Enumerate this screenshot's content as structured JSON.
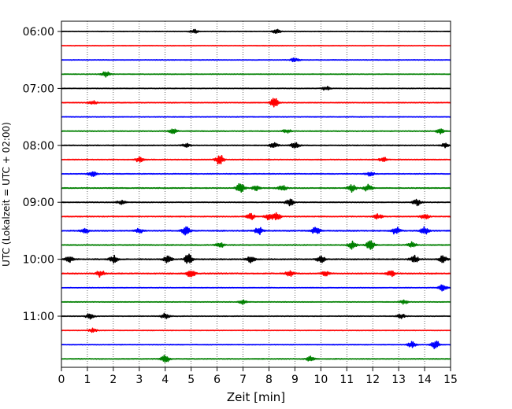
{
  "chart_data": {
    "type": "line",
    "title": "",
    "xlabel": "Zeit  [min]",
    "ylabel": "UTC (Lokalzeit = UTC + 02:00)",
    "xlim": [
      0,
      15
    ],
    "x_ticks": [
      "0",
      "1",
      "2",
      "3",
      "4",
      "5",
      "6",
      "7",
      "8",
      "9",
      "10",
      "11",
      "12",
      "13",
      "14",
      "15"
    ],
    "y_ticks": [
      "06:00",
      "07:00",
      "08:00",
      "09:00",
      "10:00",
      "11:00"
    ],
    "grid": "vertical dotted",
    "trace_interval_min": 15,
    "trace_colors": [
      "#000000",
      "#ff0000",
      "#0000ff",
      "#008000"
    ],
    "traces": [
      {
        "start": "06:00",
        "color": "#000000",
        "amplitude": 0.3,
        "bursts": [
          [
            5.1,
            1.0
          ],
          [
            8.3,
            1.0
          ]
        ]
      },
      {
        "start": "06:15",
        "color": "#ff0000",
        "amplitude": 0.3,
        "bursts": []
      },
      {
        "start": "06:30",
        "color": "#0000ff",
        "amplitude": 0.35,
        "bursts": [
          [
            9.0,
            1.0
          ]
        ]
      },
      {
        "start": "06:45",
        "color": "#008000",
        "amplitude": 0.35,
        "bursts": [
          [
            1.7,
            1.5
          ]
        ]
      },
      {
        "start": "07:00",
        "color": "#000000",
        "amplitude": 0.35,
        "bursts": [
          [
            10.2,
            1.0
          ]
        ]
      },
      {
        "start": "07:15",
        "color": "#ff0000",
        "amplitude": 0.4,
        "bursts": [
          [
            8.2,
            2.5
          ],
          [
            1.2,
            1.0
          ]
        ]
      },
      {
        "start": "07:30",
        "color": "#0000ff",
        "amplitude": 0.35,
        "bursts": []
      },
      {
        "start": "07:45",
        "color": "#008000",
        "amplitude": 0.45,
        "bursts": [
          [
            4.3,
            1.0
          ],
          [
            8.7,
            1.0
          ],
          [
            14.6,
            1.2
          ]
        ]
      },
      {
        "start": "08:00",
        "color": "#000000",
        "amplitude": 0.45,
        "bursts": [
          [
            8.2,
            1.5
          ],
          [
            9.0,
            1.5
          ],
          [
            4.8,
            1.0
          ],
          [
            14.8,
            1.0
          ]
        ]
      },
      {
        "start": "08:15",
        "color": "#ff0000",
        "amplitude": 0.45,
        "bursts": [
          [
            6.1,
            2.5
          ],
          [
            3.0,
            1.2
          ],
          [
            12.4,
            1.2
          ]
        ]
      },
      {
        "start": "08:30",
        "color": "#0000ff",
        "amplitude": 0.45,
        "bursts": [
          [
            1.2,
            1.2
          ],
          [
            11.9,
            1.0
          ]
        ]
      },
      {
        "start": "08:45",
        "color": "#008000",
        "amplitude": 0.5,
        "bursts": [
          [
            6.9,
            2.5
          ],
          [
            8.5,
            1.8
          ],
          [
            11.2,
            1.8
          ],
          [
            11.8,
            1.8
          ],
          [
            7.5,
            1.2
          ]
        ]
      },
      {
        "start": "09:00",
        "color": "#000000",
        "amplitude": 0.45,
        "bursts": [
          [
            8.8,
            1.8
          ],
          [
            13.7,
            1.5
          ],
          [
            2.3,
            1.0
          ]
        ]
      },
      {
        "start": "09:15",
        "color": "#ff0000",
        "amplitude": 0.5,
        "bursts": [
          [
            7.3,
            1.5
          ],
          [
            8.0,
            1.8
          ],
          [
            8.3,
            1.8
          ],
          [
            14.0,
            1.5
          ],
          [
            12.2,
            1.2
          ]
        ]
      },
      {
        "start": "09:30",
        "color": "#0000ff",
        "amplitude": 0.6,
        "bursts": [
          [
            4.8,
            2.0
          ],
          [
            7.6,
            1.8
          ],
          [
            9.8,
            1.8
          ],
          [
            12.9,
            1.8
          ],
          [
            14.0,
            1.8
          ],
          [
            0.9,
            1.2
          ],
          [
            3.0,
            1.2
          ]
        ]
      },
      {
        "start": "09:45",
        "color": "#008000",
        "amplitude": 0.5,
        "bursts": [
          [
            11.9,
            2.5
          ],
          [
            11.2,
            2.0
          ],
          [
            6.1,
            1.5
          ],
          [
            13.5,
            1.5
          ]
        ]
      },
      {
        "start": "10:00",
        "color": "#000000",
        "amplitude": 0.6,
        "bursts": [
          [
            4.9,
            2.5
          ],
          [
            2.0,
            1.8
          ],
          [
            4.1,
            1.8
          ],
          [
            10.0,
            1.8
          ],
          [
            13.6,
            1.8
          ],
          [
            0.3,
            1.5
          ],
          [
            7.3,
            1.5
          ],
          [
            14.7,
            1.5
          ]
        ]
      },
      {
        "start": "10:15",
        "color": "#ff0000",
        "amplitude": 0.6,
        "bursts": [
          [
            5.0,
            2.0
          ],
          [
            1.5,
            1.8
          ],
          [
            8.8,
            1.5
          ],
          [
            12.7,
            1.5
          ],
          [
            10.2,
            1.2
          ]
        ]
      },
      {
        "start": "10:30",
        "color": "#0000ff",
        "amplitude": 0.35,
        "bursts": [
          [
            14.7,
            1.8
          ]
        ]
      },
      {
        "start": "10:45",
        "color": "#008000",
        "amplitude": 0.35,
        "bursts": [
          [
            7.0,
            1.0
          ],
          [
            13.2,
            1.0
          ]
        ]
      },
      {
        "start": "11:00",
        "color": "#000000",
        "amplitude": 0.4,
        "bursts": [
          [
            1.1,
            1.5
          ],
          [
            4.0,
            1.5
          ],
          [
            13.1,
            1.2
          ]
        ]
      },
      {
        "start": "11:15",
        "color": "#ff0000",
        "amplitude": 0.35,
        "bursts": [
          [
            1.2,
            1.0
          ]
        ]
      },
      {
        "start": "11:30",
        "color": "#0000ff",
        "amplitude": 0.35,
        "bursts": [
          [
            14.4,
            2.5
          ],
          [
            13.5,
            1.5
          ]
        ]
      },
      {
        "start": "11:45",
        "color": "#008000",
        "amplitude": 0.45,
        "bursts": [
          [
            4.0,
            2.0
          ],
          [
            9.6,
            1.2
          ]
        ]
      }
    ]
  }
}
